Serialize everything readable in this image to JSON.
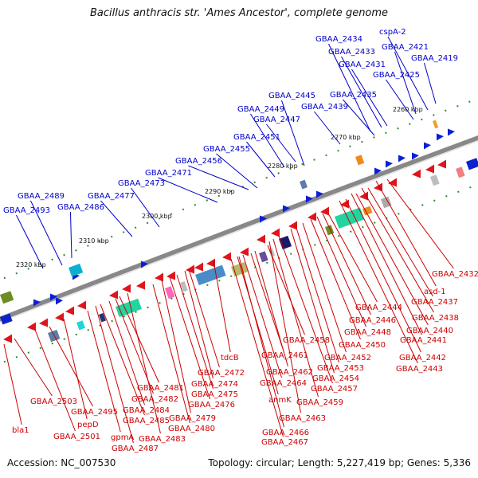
{
  "title": "Bacillus anthracis str. 'Ames Ancestor', complete genome",
  "footer": {
    "accession": "Accession: NC_007530",
    "info": "Topology: circular; Length: 5,227,419 bp; Genes: 5,336"
  },
  "colors": {
    "forward_label": "#0000cc",
    "reverse_label": "#cc0000",
    "backbone": "#777777",
    "ticks": "#2e8b2e"
  },
  "kbp_ticks": [
    "2260 kbp",
    "2270 kbp",
    "2280 kbp",
    "2290 kbp",
    "2300 kbp",
    "2310 kbp",
    "2320 kbp"
  ],
  "forward_genes": [
    "GBAA_2434",
    "cspA-2",
    "GBAA_2433",
    "GBAA_2421",
    "GBAA_2419",
    "GBAA_2431",
    "GBAA_2425",
    "GBAA_2445",
    "GBAA_2435",
    "GBAA_2449",
    "GBAA_2439",
    "GBAA_2447",
    "GBAA_2451",
    "GBAA_2455",
    "GBAA_2456",
    "GBAA_2471",
    "GBAA_2473",
    "GBAA_2489",
    "GBAA_2477",
    "GBAA_2493",
    "GBAA_2486"
  ],
  "reverse_genes": [
    "GBAA_2432",
    "asd-1",
    "GBAA_2437",
    "GBAA_2444",
    "GBAA_2438",
    "GBAA_2446",
    "GBAA_2440",
    "GBAA_2448",
    "GBAA_2441",
    "GBAA_2458",
    "GBAA_2450",
    "GBAA_2442",
    "GBAA_2461",
    "GBAA_2452",
    "GBAA_2443",
    "tdcB",
    "GBAA_2453",
    "GBAA_2462",
    "GBAA_2472",
    "GBAA_2454",
    "GBAA_2481",
    "GBAA_2474",
    "GBAA_2464",
    "GBAA_2457",
    "GBAA_2475",
    "anmK",
    "GBAA_2459",
    "GBAA_2503",
    "GBAA_2482",
    "GBAA_2495",
    "GBAA_2476",
    "GBAA_2484",
    "pepD",
    "GBAA_2463",
    "GBAA_2485",
    "GBAA_2479",
    "GBAA_2480",
    "GBAA_2466",
    "bla1",
    "GBAA_2501",
    "gpmA",
    "GBAA_2483",
    "GBAA_2467",
    "GBAA_2487"
  ]
}
